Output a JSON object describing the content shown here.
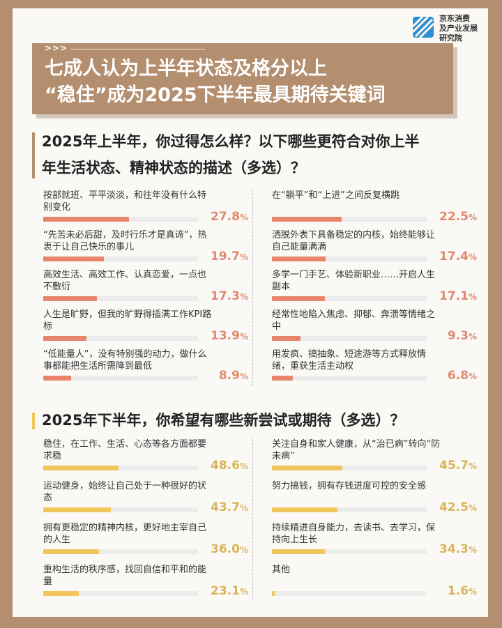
{
  "logo": {
    "name": "jd-institute-logo-icon",
    "lines": [
      "京东消费",
      "及产业发展",
      "研究院"
    ]
  },
  "header": {
    "arrows": ">>>",
    "title_lines": [
      "七成人认为上半年状态及格分以上",
      "“稳住”成为2025下半年最具期待关键词"
    ]
  },
  "colors": {
    "accent": "#b48f6f",
    "orange": "#e8846a",
    "orange_text": "#df8a70",
    "yellow": "#f1c75d",
    "yellow_text": "#d9b45a",
    "track": "#ececec"
  },
  "q1": {
    "lines": [
      "2025年上半年，你过得怎么样？以下哪些更符合对你上半",
      "年生活状态、精神状态的描述（多选）？"
    ]
  },
  "q2": {
    "title": "2025年下半年，你希望有哪些新尝试或期待（多选）？"
  },
  "chart_data": [
    {
      "type": "bar",
      "title": "2025年上半年，你过得怎么样？以下哪些更符合对你上半年生活状态、精神状态的描述（多选）？",
      "categories": [
        "按部就班、平平淡淡，和往年没有什么特别变化",
        "“先苦未必后甜，及时行乐才是真谛”，热衷于让自己快乐的事儿",
        "高效生活、高效工作、认真恋爱，一点也不敷衍",
        "人生是旷野，但我的旷野得插满工作KPI路标",
        "“低能量人”，没有特别强的动力，做什么事都能把生活所需降到最低",
        "在“躺平”和“上进”之间反复横跳",
        "洒脱外表下具备稳定的内核，始终能够让自己能量满满",
        "多学一门手艺、体验新职业……开启人生副本",
        "经常性地陷入焦虑、抑郁、奔溃等情绪之中",
        "用发疯、搞抽象、短途游等方式释放情绪，重获生活主动权"
      ],
      "values": [
        27.8,
        19.7,
        17.3,
        13.9,
        8.9,
        22.5,
        17.4,
        17.1,
        9.3,
        6.8
      ]
    },
    {
      "type": "bar",
      "title": "2025年下半年，你希望有哪些新尝试或期待（多选）？",
      "categories": [
        "稳住，在工作、生活、心态等各方面都要求稳",
        "运动健身，始终让自己处于一种很好的状态",
        "拥有更稳定的精神内核，更好地主宰自己的人生",
        "重构生活的秩序感，找回自信和平和的能量",
        "关注自身和家人健康，从“治已病”转向“防未病”",
        "努力搞钱，拥有存钱进度可控的安全感",
        "持续精进自身能力，去读书、去学习，保持向上生长",
        "其他"
      ],
      "values": [
        48.6,
        43.7,
        36.0,
        23.1,
        45.7,
        42.5,
        34.3,
        1.6
      ]
    }
  ],
  "items1": [
    {
      "label": "按部就班、平平淡淡，和往年没有什么特别变化",
      "value": "27.8",
      "frac": 0.278
    },
    {
      "label": "“先苦未必后甜，及时行乐才是真谛”，热衷于让自己快乐的事儿",
      "value": "19.7",
      "frac": 0.197
    },
    {
      "label": "高效生活、高效工作、认真恋爱，一点也不敷衍",
      "value": "17.3",
      "frac": 0.173
    },
    {
      "label": "人生是旷野，但我的旷野得插满工作KPI路标",
      "value": "13.9",
      "frac": 0.139
    },
    {
      "label": "“低能量人”，没有特别强的动力，做什么事都能把生活所需降到最低",
      "value": "8.9",
      "frac": 0.089
    },
    {
      "label": "在“躺平”和“上进”之间反复横跳",
      "value": "22.5",
      "frac": 0.225
    },
    {
      "label": "洒脱外表下具备稳定的内核，始终能够让自己能量满满",
      "value": "17.4",
      "frac": 0.174
    },
    {
      "label": "多学一门手艺、体验新职业……开启人生副本",
      "value": "17.1",
      "frac": 0.171
    },
    {
      "label": "经常性地陷入焦虑、抑郁、奔溃等情绪之中",
      "value": "9.3",
      "frac": 0.093
    },
    {
      "label": "用发疯、搞抽象、短途游等方式释放情绪，重获生活主动权",
      "value": "6.8",
      "frac": 0.068
    }
  ],
  "items2": [
    {
      "label": "稳住，在工作、生活、心态等各方面都要求稳",
      "value": "48.6",
      "frac": 0.486
    },
    {
      "label": "运动健身，始终让自己处于一种很好的状态",
      "value": "43.7",
      "frac": 0.437
    },
    {
      "label": "拥有更稳定的精神内核，更好地主宰自己的人生",
      "value": "36.0",
      "frac": 0.36
    },
    {
      "label": "重构生活的秩序感，找回自信和平和的能量",
      "value": "23.1",
      "frac": 0.231
    },
    {
      "label": "关注自身和家人健康，从“治已病”转向“防未病”",
      "value": "45.7",
      "frac": 0.457
    },
    {
      "label": "努力搞钱，拥有存钱进度可控的安全感",
      "value": "42.5",
      "frac": 0.425
    },
    {
      "label": "持续精进自身能力，去读书、去学习，保持向上生长",
      "value": "34.3",
      "frac": 0.343
    },
    {
      "label": "其他",
      "value": "1.6",
      "frac": 0.016
    }
  ],
  "percent_symbol": "%"
}
